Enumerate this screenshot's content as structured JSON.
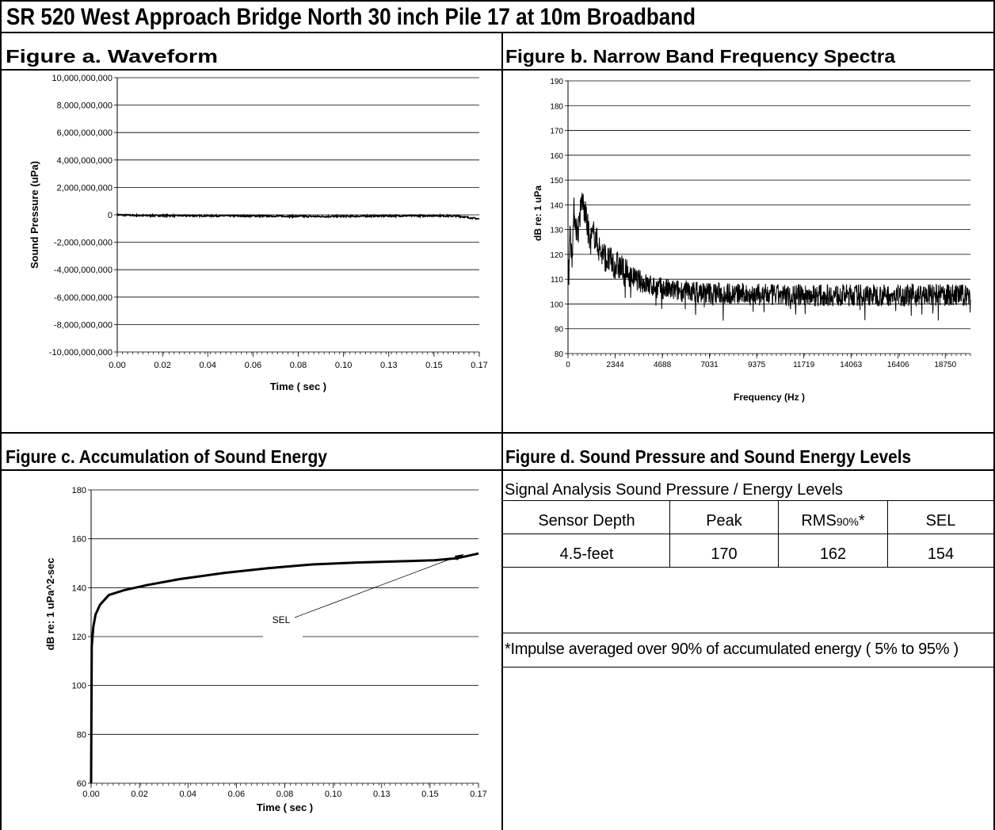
{
  "page": {
    "title": "SR 520 West Approach Bridge North 30 inch Pile 17 at 10m Broadband"
  },
  "fig_a": {
    "title": "Figure a. Waveform"
  },
  "fig_b": {
    "title": "Figure b. Narrow Band Frequency Spectra"
  },
  "fig_c": {
    "title": "Figure c. Accumulation of Sound Energy",
    "annotation": "SEL"
  },
  "fig_d": {
    "title": "Figure d. Sound Pressure and Sound Energy Levels",
    "subtitle": "Signal Analysis Sound Pressure / Energy Levels",
    "headers": [
      "Sensor Depth",
      "Peak",
      "RMS",
      "SEL"
    ],
    "rms_subscript": "90%",
    "rms_suffix": "*",
    "row": [
      "4.5-feet",
      "170",
      "162",
      "154"
    ],
    "footnote": "*Impulse averaged over 90% of accumulated energy ( 5% to 95% )"
  },
  "chart_data": [
    {
      "type": "line",
      "title": "",
      "xlabel": "Time ( sec )",
      "ylabel": "Sound Pressure (uPa)",
      "xlim": [
        0,
        0.175
      ],
      "ylim": [
        -10000000000,
        10000000000
      ],
      "x_ticks": [
        "0.00",
        "0.02",
        "0.04",
        "0.06",
        "0.08",
        "0.10",
        "0.13",
        "0.15",
        "0.17"
      ],
      "y_ticks": [
        "10,000,000,000",
        "8,000,000,000",
        "6,000,000,000",
        "4,000,000,000",
        "2,000,000,000",
        "0",
        "-2,000,000,000",
        "-4,000,000,000",
        "-6,000,000,000",
        "-8,000,000,000",
        "-10,000,000,000"
      ],
      "grid": "horizontal",
      "series": [
        {
          "x": [
            0,
            0.01,
            0.03,
            0.06,
            0.1,
            0.13,
            0.155,
            0.165,
            0.175
          ],
          "y": [
            0,
            -50000000,
            -60000000,
            -80000000,
            -120000000,
            -80000000,
            -60000000,
            -100000000,
            -300000000
          ]
        }
      ]
    },
    {
      "type": "line",
      "title": "",
      "xlabel": "Frequency (Hz )",
      "ylabel": "dB re: 1 uPa",
      "xlim": [
        0,
        20000
      ],
      "ylim": [
        80,
        190
      ],
      "x_ticks": [
        "0",
        "2344",
        "4688",
        "7031",
        "9375",
        "11719",
        "14063",
        "16406",
        "18750"
      ],
      "y_ticks": [
        "190",
        "180",
        "170",
        "160",
        "150",
        "140",
        "130",
        "120",
        "110",
        "100",
        "90",
        "80"
      ],
      "grid": "horizontal",
      "series": [
        {
          "x": [
            0,
            100,
            200,
            300,
            400,
            500,
            700,
            900,
            1100,
            1300,
            1600,
            2000,
            2500,
            3000,
            3500,
            4000,
            5000,
            7000,
            10000,
            12000,
            15000,
            18000,
            20000
          ],
          "y": [
            112,
            128,
            121,
            138,
            132,
            130,
            143,
            135,
            126,
            129,
            122,
            118,
            116,
            112,
            110,
            108,
            106,
            105,
            104,
            104,
            104,
            104,
            104
          ]
        }
      ]
    },
    {
      "type": "line",
      "title": "",
      "xlabel": "Time ( sec )",
      "ylabel": "dB re: 1 uPa^2-sec",
      "xlim": [
        0,
        0.175
      ],
      "ylim": [
        60,
        180
      ],
      "x_ticks": [
        "0.00",
        "0.02",
        "0.04",
        "0.06",
        "0.08",
        "0.10",
        "0.13",
        "0.15",
        "0.17"
      ],
      "y_ticks": [
        "180",
        "160",
        "140",
        "120",
        "100",
        "80",
        "60"
      ],
      "grid": "horizontal",
      "series": [
        {
          "x": [
            0,
            0.0003,
            0.001,
            0.002,
            0.004,
            0.008,
            0.015,
            0.025,
            0.04,
            0.06,
            0.08,
            0.1,
            0.12,
            0.14,
            0.155,
            0.165,
            0.17,
            0.175
          ],
          "y": [
            60,
            116,
            124,
            129,
            133,
            137,
            139,
            141,
            143.5,
            146,
            148,
            149.5,
            150.3,
            150.8,
            151.2,
            152,
            153,
            154
          ]
        }
      ]
    }
  ]
}
